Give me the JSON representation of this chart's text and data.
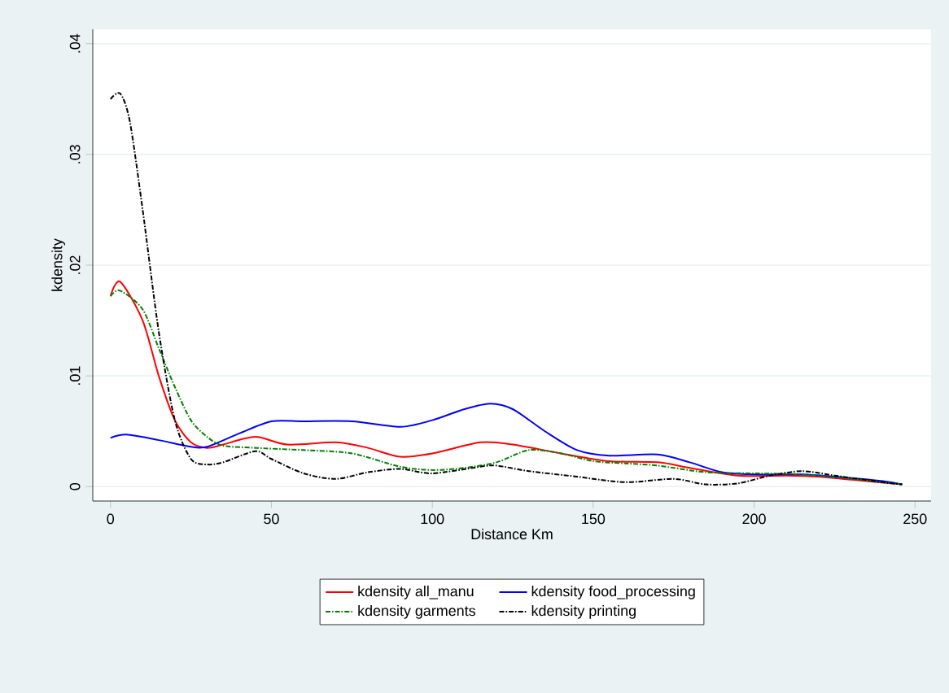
{
  "chart_data": {
    "type": "line",
    "xlabel": "Distance Km",
    "ylabel": "kdensity",
    "xlim": [
      -5.5,
      255
    ],
    "ylim": [
      -0.0013,
      0.0413
    ],
    "xticks": [
      0,
      50,
      100,
      150,
      200,
      250
    ],
    "yticks": [
      {
        "value": 0,
        "label": "0"
      },
      {
        "value": 0.01,
        "label": ".01"
      },
      {
        "value": 0.02,
        "label": ".02"
      },
      {
        "value": 0.03,
        "label": ".03"
      },
      {
        "value": 0.04,
        "label": ".04"
      }
    ],
    "grid": "y",
    "legend": "bottom",
    "marker": "none",
    "series": [
      {
        "name": "kdensity all_manu",
        "color": "#ff0000",
        "line_style": "solid",
        "x": [
          0,
          3,
          10,
          15,
          20,
          25,
          30,
          35,
          45,
          55,
          70,
          80,
          90,
          100,
          115,
          125,
          140,
          155,
          170,
          180,
          195,
          210,
          220,
          235,
          246
        ],
        "values": [
          0.0172,
          0.0185,
          0.015,
          0.01,
          0.006,
          0.004,
          0.0035,
          0.0038,
          0.0045,
          0.0038,
          0.004,
          0.0035,
          0.0027,
          0.003,
          0.004,
          0.0038,
          0.003,
          0.0023,
          0.0022,
          0.0017,
          0.001,
          0.001,
          0.0009,
          0.0005,
          0.0002
        ]
      },
      {
        "name": "kdensity food_processing",
        "color": "#0000ff",
        "line_style": "solid",
        "x": [
          0,
          5,
          15,
          25,
          30,
          40,
          50,
          60,
          75,
          90,
          100,
          110,
          118,
          125,
          135,
          145,
          155,
          170,
          180,
          190,
          200,
          215,
          225,
          240,
          246
        ],
        "values": [
          0.0044,
          0.0047,
          0.0042,
          0.0036,
          0.0036,
          0.0048,
          0.0059,
          0.0059,
          0.0059,
          0.0054,
          0.006,
          0.007,
          0.0075,
          0.007,
          0.005,
          0.0033,
          0.0028,
          0.0029,
          0.0022,
          0.0013,
          0.0011,
          0.0011,
          0.0009,
          0.0005,
          0.0002
        ]
      },
      {
        "name": "kdensity garments",
        "color": "#008000",
        "line_style": "dashdot",
        "x": [
          0,
          3,
          10,
          15,
          20,
          25,
          30,
          35,
          45,
          60,
          75,
          90,
          100,
          110,
          120,
          130,
          140,
          150,
          160,
          170,
          185,
          200,
          215,
          230,
          246
        ],
        "values": [
          0.0172,
          0.0177,
          0.016,
          0.0125,
          0.009,
          0.006,
          0.0045,
          0.0037,
          0.0035,
          0.0033,
          0.003,
          0.0018,
          0.0015,
          0.0017,
          0.0022,
          0.0033,
          0.003,
          0.0023,
          0.0021,
          0.0019,
          0.0013,
          0.0012,
          0.0011,
          0.0007,
          0.0002
        ]
      },
      {
        "name": "kdensity printing",
        "color": "#000000",
        "line_style": "dashdot",
        "x": [
          0,
          3,
          6,
          10,
          15,
          20,
          25,
          30,
          35,
          45,
          50,
          60,
          70,
          80,
          90,
          100,
          115,
          120,
          130,
          145,
          160,
          175,
          185,
          195,
          205,
          215,
          225,
          240,
          246
        ],
        "values": [
          0.035,
          0.0355,
          0.033,
          0.025,
          0.014,
          0.006,
          0.0025,
          0.002,
          0.0022,
          0.0032,
          0.0025,
          0.0012,
          0.0007,
          0.0013,
          0.0016,
          0.0012,
          0.0018,
          0.0019,
          0.0014,
          0.0009,
          0.0004,
          0.0007,
          0.0002,
          0.0003,
          0.001,
          0.0014,
          0.001,
          0.0004,
          0.0002
        ]
      }
    ]
  }
}
